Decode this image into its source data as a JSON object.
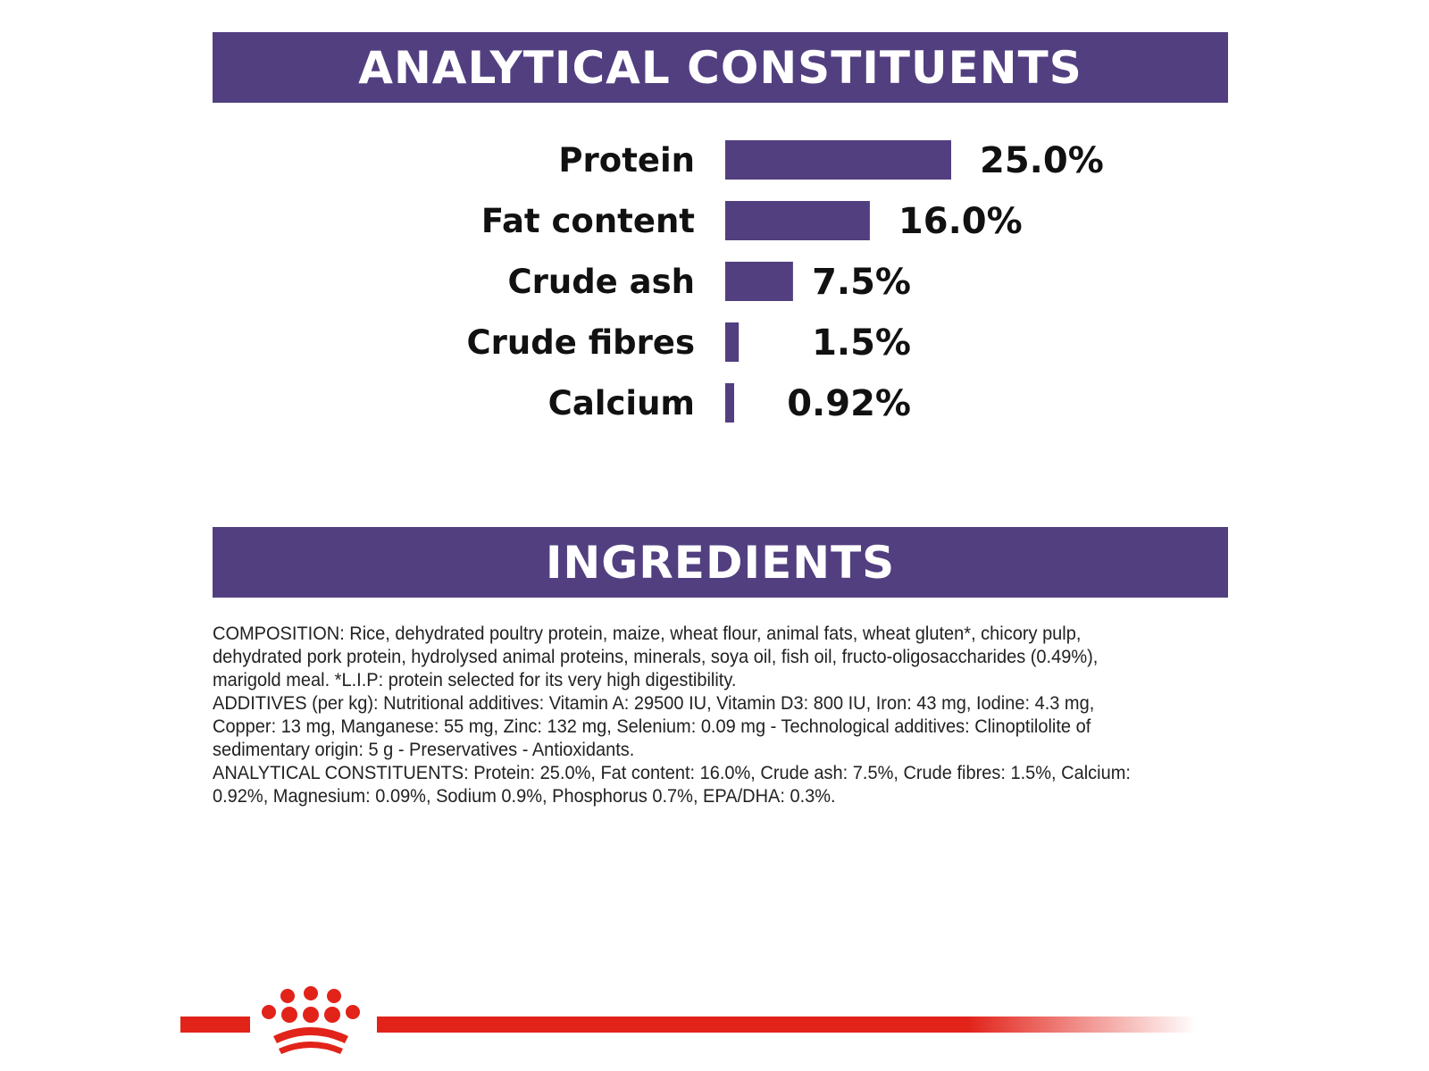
{
  "sections": {
    "analytical_title": "ANALYTICAL CONSTITUENTS",
    "ingredients_title": "INGREDIENTS"
  },
  "colors": {
    "banner": "#523f80",
    "bar": "#523f80",
    "brand_red": "#e2231a"
  },
  "chart_data": {
    "type": "bar",
    "orientation": "horizontal",
    "categories": [
      "Protein",
      "Fat content",
      "Crude ash",
      "Crude fibres",
      "Calcium"
    ],
    "values": [
      25.0,
      16.0,
      7.5,
      1.5,
      0.92
    ],
    "value_labels": [
      "25.0%",
      "16.0%",
      "7.5%",
      "1.5%",
      "0.92%"
    ],
    "unit": "%",
    "xlim": [
      0,
      25
    ],
    "grid": false
  },
  "ingredients": {
    "composition": "COMPOSITION: Rice, dehydrated poultry protein, maize, wheat flour, animal fats, wheat gluten*, chicory pulp, dehydrated pork protein, hydrolysed animal proteins, minerals, soya oil, fish oil, fructo-oligosaccharides (0.49%), marigold meal. *L.I.P: protein selected for its very high digestibility.",
    "additives": "ADDITIVES (per kg): Nutritional additives: Vitamin A: 29500 IU, Vitamin D3: 800 IU, Iron: 43 mg, Iodine: 4.3 mg, Copper: 13 mg, Manganese: 55 mg, Zinc: 132 mg, Selenium: 0.09 mg - Technological additives: Clinoptilolite of sedimentary origin: 5 g - Preservatives - Antioxidants.",
    "analytical": "ANALYTICAL CONSTITUENTS: Protein: 25.0%,  Fat content: 16.0%, Crude ash: 7.5%,  Crude fibres: 1.5%, Calcium:  0.92%, Magnesium: 0.09%, Sodium 0.9%, Phosphorus 0.7%, EPA/DHA: 0.3%."
  },
  "footer": {
    "logo_icon": "crown-icon"
  }
}
